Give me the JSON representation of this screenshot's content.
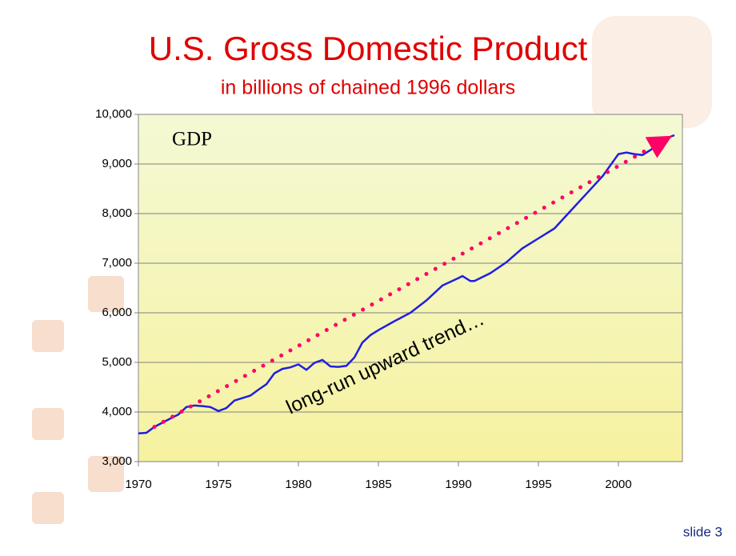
{
  "chart_data": {
    "type": "line",
    "title": "U.S. Gross Domestic Product",
    "subtitle": "in billions of chained 1996 dollars",
    "annotations": [
      "GDP",
      "long-run upward trend…"
    ],
    "footer": "slide 3",
    "x": [
      1970,
      1970.5,
      1971,
      1972,
      1972.5,
      1973,
      1973.5,
      1974,
      1974.5,
      1975,
      1975.5,
      1976,
      1977,
      1977.5,
      1978,
      1978.5,
      1979,
      1979.5,
      1980,
      1980.5,
      1981,
      1981.5,
      1982,
      1982.5,
      1983,
      1983.5,
      1984,
      1984.5,
      1985,
      1986,
      1987,
      1988,
      1989,
      1990,
      1990.25,
      1990.75,
      1991,
      1992,
      1993,
      1994,
      1995,
      1996,
      1997,
      1998,
      1999,
      2000,
      2000.5,
      2001,
      2001.5,
      2002,
      2002.5,
      2003,
      2003.5
    ],
    "series": [
      {
        "color": "#1f1fe0",
        "values": [
          3570,
          3580,
          3700,
          3870,
          3950,
          4100,
          4130,
          4120,
          4100,
          4020,
          4080,
          4230,
          4330,
          4450,
          4560,
          4780,
          4870,
          4900,
          4960,
          4850,
          4990,
          5050,
          4920,
          4910,
          4930,
          5100,
          5400,
          5550,
          5650,
          5830,
          6000,
          6250,
          6550,
          6700,
          6740,
          6640,
          6640,
          6800,
          7020,
          7300,
          7500,
          7700,
          8050,
          8400,
          8750,
          9200,
          9230,
          9200,
          9180,
          9280,
          9400,
          9520,
          9580
        ]
      }
    ],
    "trend_line": {
      "x": [
        1971,
        2002.7
      ],
      "values": [
        3700,
        9450
      ],
      "color": "#ff0066"
    },
    "xlim": [
      1970,
      2004
    ],
    "ylim": [
      3000,
      10000
    ],
    "xticks": [
      1970,
      1975,
      1980,
      1985,
      1990,
      1995,
      2000
    ],
    "yticks": [
      {
        "value": 3000,
        "label": "3,000"
      },
      {
        "value": 4000,
        "label": "4,000"
      },
      {
        "value": 5000,
        "label": "5,000"
      },
      {
        "value": 6000,
        "label": "6,000"
      },
      {
        "value": 7000,
        "label": "7,000"
      },
      {
        "value": 8000,
        "label": "8,000"
      },
      {
        "value": 9000,
        "label": "9,000"
      },
      {
        "value": 10000,
        "label": "10,000"
      }
    ],
    "grid": true
  }
}
